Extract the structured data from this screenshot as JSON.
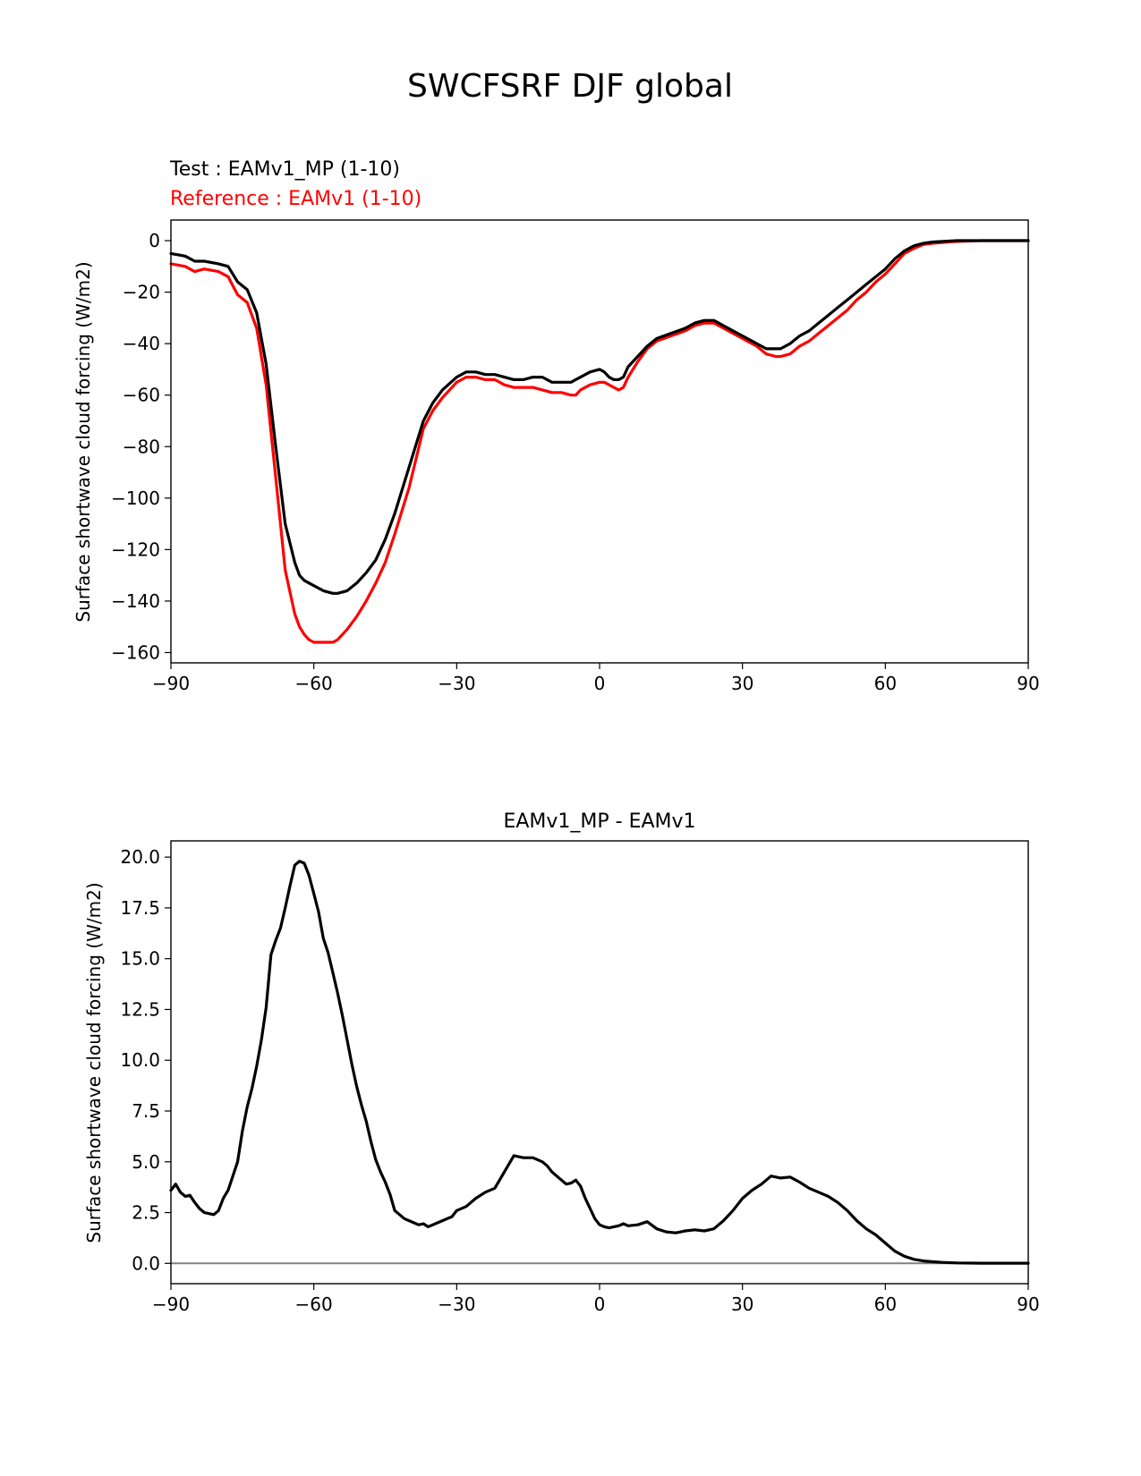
{
  "figure_title": "SWCFSRF DJF global",
  "colors": {
    "test": "#000000",
    "reference": "#ff0000",
    "zero_line": "#808080",
    "axes": "#000000"
  },
  "chart_data": [
    {
      "type": "line",
      "panel": "top",
      "test_label": "Test : EAMv1_MP (1-10)",
      "ref_label": "Reference : EAMv1 (1-10)",
      "xlabel": "",
      "ylabel": "Surface shortwave cloud forcing (W/m2)",
      "xlim": [
        -90,
        90
      ],
      "ylim": [
        -164,
        8
      ],
      "xticks": [
        -90,
        -60,
        -30,
        0,
        30,
        60,
        90
      ],
      "xtick_labels": [
        "−90",
        "−60",
        "−30",
        "0",
        "30",
        "60",
        "90"
      ],
      "yticks": [
        0,
        -20,
        -40,
        -60,
        -80,
        -100,
        -120,
        -140,
        -160
      ],
      "ytick_labels": [
        "0",
        "−20",
        "−40",
        "−60",
        "−80",
        "−100",
        "−120",
        "−140",
        "−160"
      ],
      "x": [
        -90,
        -87,
        -85,
        -83,
        -80,
        -78,
        -76,
        -74,
        -72,
        -70,
        -68,
        -66,
        -64,
        -63,
        -62,
        -61,
        -60,
        -58,
        -56,
        -55,
        -53,
        -51,
        -49,
        -47,
        -45,
        -43,
        -40,
        -37,
        -35,
        -33,
        -30,
        -28,
        -26,
        -24,
        -22,
        -20,
        -18,
        -16,
        -14,
        -12,
        -10,
        -8,
        -6,
        -5,
        -4,
        -2,
        0,
        1,
        2,
        3,
        4,
        5,
        6,
        8,
        10,
        12,
        15,
        18,
        20,
        22,
        24,
        26,
        28,
        30,
        33,
        35,
        37,
        38,
        40,
        42,
        44,
        46,
        48,
        50,
        52,
        54,
        56,
        58,
        60,
        62,
        64,
        66,
        68,
        70,
        75,
        80,
        85,
        90
      ],
      "series": [
        {
          "name": "Test : EAMv1_MP (1-10)",
          "color": "#000000",
          "values": [
            -5,
            -6,
            -8,
            -8,
            -9,
            -10,
            -16,
            -19,
            -28,
            -48,
            -80,
            -110,
            -125,
            -130,
            -132,
            -133,
            -134,
            -136,
            -137,
            -137,
            -136,
            -133,
            -129,
            -124,
            -116,
            -106,
            -88,
            -70,
            -63,
            -58,
            -53,
            -51,
            -51,
            -52,
            -52,
            -53,
            -54,
            -54,
            -53,
            -53,
            -55,
            -55,
            -55,
            -54,
            -53,
            -51,
            -50,
            -51,
            -53,
            -54,
            -54,
            -53,
            -49,
            -45,
            -41,
            -38,
            -36,
            -34,
            -32,
            -31,
            -31,
            -33,
            -35,
            -37,
            -40,
            -42,
            -42,
            -42,
            -40,
            -37,
            -35,
            -32,
            -29,
            -26,
            -23,
            -20,
            -17,
            -14,
            -11,
            -7,
            -4,
            -2,
            -1,
            -0.5,
            0,
            0,
            0,
            0
          ]
        },
        {
          "name": "Reference : EAMv1 (1-10)",
          "color": "#ff0000",
          "values": [
            -9,
            -10,
            -12,
            -11,
            -12,
            -14,
            -21,
            -24,
            -34,
            -56,
            -92,
            -128,
            -145,
            -150,
            -153,
            -155,
            -156,
            -156,
            -156,
            -155,
            -151,
            -146,
            -140,
            -133,
            -125,
            -114,
            -96,
            -73,
            -66,
            -61,
            -55,
            -53,
            -53,
            -54,
            -54,
            -56,
            -57,
            -57,
            -57,
            -58,
            -59,
            -59,
            -60,
            -60,
            -58,
            -56,
            -55,
            -55,
            -56,
            -57,
            -58,
            -57,
            -53,
            -47,
            -42,
            -39,
            -37,
            -35,
            -33,
            -32,
            -32,
            -34,
            -36,
            -38,
            -41,
            -44,
            -45,
            -45,
            -44,
            -41,
            -39,
            -36,
            -33,
            -30,
            -27,
            -23,
            -20,
            -16,
            -13,
            -9,
            -5,
            -3,
            -1.5,
            -1,
            -0.3,
            0,
            0,
            0
          ]
        }
      ]
    },
    {
      "type": "line",
      "panel": "bottom",
      "title": "EAMv1_MP - EAMv1",
      "xlabel": "",
      "ylabel": "Surface shortwave cloud forcing (W/m2)",
      "xlim": [
        -90,
        90
      ],
      "ylim": [
        -1,
        20.8
      ],
      "xticks": [
        -90,
        -60,
        -30,
        0,
        30,
        60,
        90
      ],
      "xtick_labels": [
        "−90",
        "−60",
        "−30",
        "0",
        "30",
        "60",
        "90"
      ],
      "yticks": [
        0,
        2.5,
        5,
        7.5,
        10,
        12.5,
        15,
        17.5,
        20
      ],
      "ytick_labels": [
        "0.0",
        "2.5",
        "5.0",
        "7.5",
        "10.0",
        "12.5",
        "15.0",
        "17.5",
        "20.0"
      ],
      "zero_line": 0,
      "x": [
        -90,
        -89,
        -88,
        -87,
        -86,
        -85,
        -84,
        -83,
        -82,
        -81,
        -80,
        -79,
        -78,
        -77,
        -76,
        -75,
        -74,
        -73,
        -72,
        -71,
        -70,
        -69,
        -68,
        -67,
        -66,
        -65,
        -64,
        -63,
        -62,
        -61,
        -60,
        -59,
        -58,
        -57,
        -56,
        -55,
        -54,
        -53,
        -52,
        -51,
        -50,
        -49,
        -48,
        -47,
        -46,
        -45,
        -44,
        -43,
        -42,
        -41,
        -40,
        -39,
        -38,
        -37,
        -36,
        -35,
        -34,
        -33,
        -32,
        -31,
        -30,
        -28,
        -26,
        -24,
        -22,
        -20,
        -18,
        -16,
        -14,
        -12,
        -11,
        -10,
        -9,
        -8,
        -7,
        -6,
        -5,
        -4,
        -3,
        -2,
        -1,
        0,
        1,
        2,
        3,
        4,
        5,
        6,
        8,
        10,
        12,
        14,
        16,
        18,
        20,
        22,
        24,
        26,
        28,
        30,
        32,
        34,
        36,
        38,
        40,
        42,
        44,
        46,
        48,
        50,
        52,
        54,
        56,
        58,
        60,
        62,
        64,
        66,
        68,
        70,
        72,
        75,
        80,
        85,
        90
      ],
      "series": [
        {
          "name": "EAMv1_MP - EAMv1",
          "color": "#000000",
          "values": [
            3.6,
            3.9,
            3.5,
            3.3,
            3.35,
            3.0,
            2.7,
            2.5,
            2.45,
            2.4,
            2.6,
            3.2,
            3.6,
            4.3,
            5.0,
            6.5,
            7.7,
            8.6,
            9.7,
            11.0,
            12.6,
            15.2,
            15.9,
            16.5,
            17.5,
            18.6,
            19.6,
            19.8,
            19.7,
            19.1,
            18.2,
            17.3,
            16.0,
            15.3,
            14.3,
            13.3,
            12.2,
            11.0,
            9.8,
            8.7,
            7.8,
            7.0,
            6.0,
            5.1,
            4.5,
            4.0,
            3.4,
            2.6,
            2.4,
            2.2,
            2.1,
            2.0,
            1.9,
            1.95,
            1.8,
            1.9,
            2.0,
            2.1,
            2.2,
            2.3,
            2.6,
            2.8,
            3.2,
            3.5,
            3.7,
            4.5,
            5.3,
            5.2,
            5.2,
            5.0,
            4.8,
            4.5,
            4.3,
            4.1,
            3.9,
            3.95,
            4.1,
            3.8,
            3.2,
            2.7,
            2.2,
            1.9,
            1.8,
            1.75,
            1.8,
            1.85,
            1.95,
            1.85,
            1.9,
            2.05,
            1.7,
            1.55,
            1.5,
            1.6,
            1.65,
            1.6,
            1.7,
            2.1,
            2.6,
            3.2,
            3.6,
            3.9,
            4.3,
            4.2,
            4.25,
            4.0,
            3.7,
            3.5,
            3.3,
            3.0,
            2.6,
            2.1,
            1.7,
            1.4,
            1.0,
            0.6,
            0.35,
            0.2,
            0.12,
            0.08,
            0.05,
            0.02,
            0.01,
            0.01,
            0.01
          ]
        }
      ]
    }
  ]
}
